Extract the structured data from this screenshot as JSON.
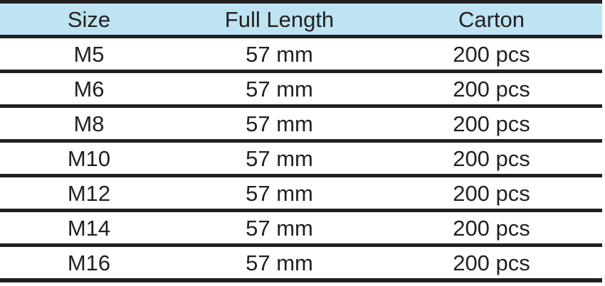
{
  "colors": {
    "header_bg": "#bee3f2",
    "border": "#231f20",
    "text": "#231f20"
  },
  "table": {
    "columns": [
      {
        "label": "Size"
      },
      {
        "label": "Full Length"
      },
      {
        "label": "Carton"
      }
    ],
    "rows": [
      {
        "size": "M5",
        "full_length": "57 mm",
        "carton": "200 pcs"
      },
      {
        "size": "M6",
        "full_length": "57 mm",
        "carton": "200 pcs"
      },
      {
        "size": "M8",
        "full_length": "57 mm",
        "carton": "200 pcs"
      },
      {
        "size": "M10",
        "full_length": "57 mm",
        "carton": "200 pcs"
      },
      {
        "size": "M12",
        "full_length": "57 mm",
        "carton": "200 pcs"
      },
      {
        "size": "M14",
        "full_length": "57 mm",
        "carton": "200 pcs"
      },
      {
        "size": "M16",
        "full_length": "57 mm",
        "carton": "200 pcs"
      }
    ]
  }
}
